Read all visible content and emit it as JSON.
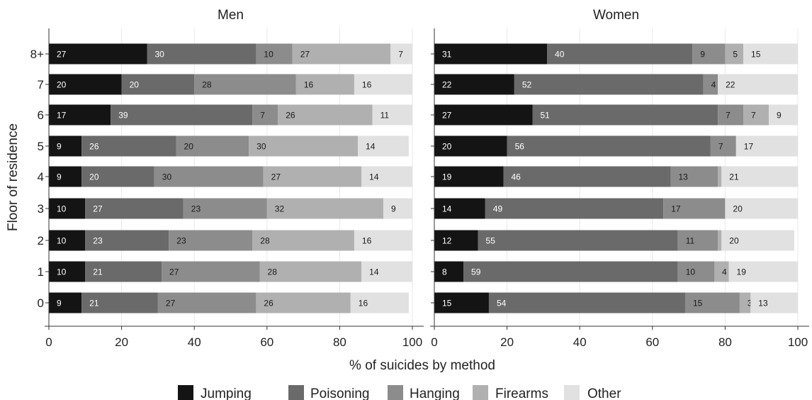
{
  "chart_data": [
    {
      "type": "bar",
      "orientation": "horizontal",
      "stacked": true,
      "title": "Men",
      "categories": [
        "8+",
        "7",
        "6",
        "5",
        "4",
        "3",
        "2",
        "1",
        "0"
      ],
      "series": [
        {
          "name": "Jumping",
          "values": [
            27,
            20,
            17,
            9,
            9,
            10,
            10,
            10,
            9
          ]
        },
        {
          "name": "Poisoning",
          "values": [
            30,
            20,
            39,
            26,
            20,
            27,
            23,
            21,
            21
          ]
        },
        {
          "name": "Hanging",
          "values": [
            10,
            28,
            7,
            20,
            30,
            23,
            23,
            27,
            27
          ]
        },
        {
          "name": "Firearms",
          "values": [
            27,
            16,
            26,
            30,
            27,
            32,
            28,
            28,
            26
          ]
        },
        {
          "name": "Other",
          "values": [
            7,
            16,
            11,
            14,
            14,
            9,
            16,
            14,
            16
          ]
        }
      ],
      "xlim": [
        0,
        100
      ],
      "xticks": [
        0,
        20,
        40,
        60,
        80,
        100
      ],
      "grid": true
    },
    {
      "type": "bar",
      "orientation": "horizontal",
      "stacked": true,
      "title": "Women",
      "categories": [
        "8+",
        "7",
        "6",
        "5",
        "4",
        "3",
        "2",
        "1",
        "0"
      ],
      "series": [
        {
          "name": "Jumping",
          "values": [
            31,
            22,
            27,
            20,
            19,
            14,
            12,
            8,
            15
          ]
        },
        {
          "name": "Poisoning",
          "values": [
            40,
            52,
            51,
            56,
            46,
            49,
            55,
            59,
            54
          ]
        },
        {
          "name": "Hanging",
          "values": [
            9,
            4,
            7,
            7,
            13,
            17,
            11,
            10,
            15
          ]
        },
        {
          "name": "Firearms",
          "values": [
            5,
            null,
            7,
            null,
            1,
            null,
            1,
            4,
            3
          ]
        },
        {
          "name": "Other",
          "values": [
            15,
            22,
            9,
            17,
            21,
            20,
            20,
            19,
            13
          ]
        }
      ],
      "xlim": [
        0,
        100
      ],
      "xticks": [
        0,
        20,
        40,
        60,
        80,
        100
      ],
      "grid": true
    }
  ],
  "labels": {
    "ylabel": "Floor of residence",
    "xlabel": "% of suicides by method"
  },
  "colors": {
    "Jumping": "#141414",
    "Poisoning": "#6a6a6a",
    "Hanging": "#8c8c8c",
    "Firearms": "#b0b0b0",
    "Other": "#e1e1e1",
    "grid": "#e9e9e9",
    "axis": "#333333"
  }
}
